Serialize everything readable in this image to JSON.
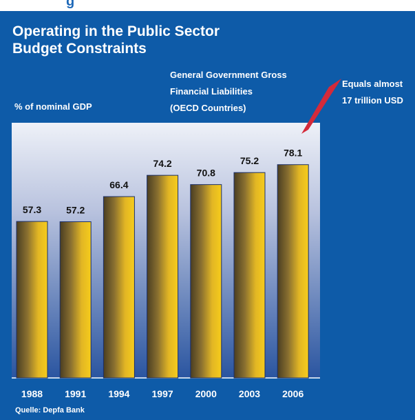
{
  "header": {
    "partial_text": "g"
  },
  "title_lines": [
    "Operating in the Public Sector",
    "Budget Constraints"
  ],
  "subtitle_lines": [
    "General Government Gross",
    "Financial Liabilities",
    "(OECD Countries)"
  ],
  "y_unit": "% of nominal GDP",
  "callout_lines": [
    "Equals almost",
    "17 trillion USD"
  ],
  "source": "Quelle: Depfa Bank",
  "colors": {
    "background": "#0e5ba8",
    "bar_top": "#f0c21a",
    "bar_dark": "#5a4a22",
    "plot_top": "#e8ecf6",
    "plot_bottom": "#2a56a0",
    "callout_arrow": "#d42a3a"
  },
  "chart_data": {
    "type": "bar",
    "categories": [
      "1988",
      "1991",
      "1994",
      "1997",
      "2000",
      "2003",
      "2006"
    ],
    "values": [
      57.3,
      57.2,
      66.4,
      74.2,
      70.8,
      75.2,
      78.1
    ],
    "value_labels": [
      "57.3",
      "57.2",
      "66.4",
      "74.2",
      "70.8",
      "75.2",
      "78.1"
    ],
    "title": "General Government Gross Financial Liabilities (OECD Countries)",
    "ylabel": "% of nominal GDP",
    "xlabel": "",
    "grid": false,
    "legend": "none"
  }
}
